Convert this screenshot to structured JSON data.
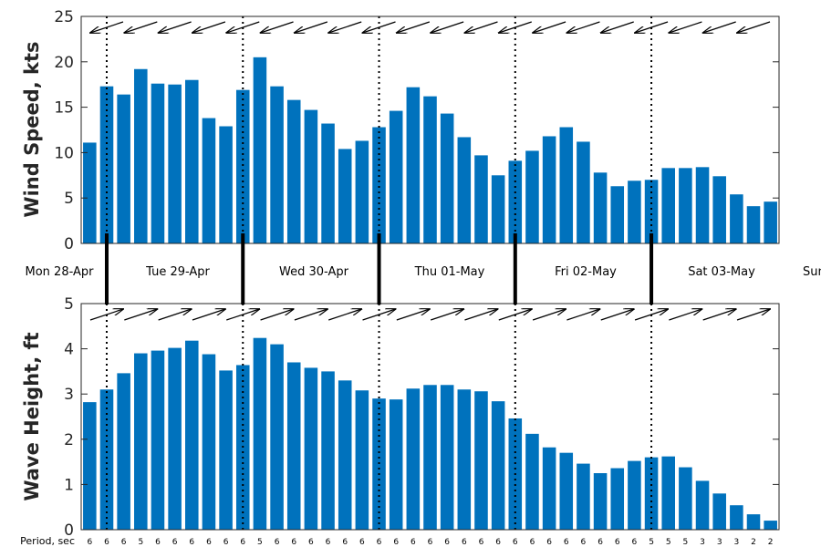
{
  "chart_data": [
    {
      "type": "bar",
      "ylabel": "Wind Speed, kts",
      "ylim": [
        0,
        25
      ],
      "yticks": [
        "0",
        "5",
        "10",
        "15",
        "20",
        "25"
      ],
      "bar_color": "#0072bd",
      "grid": false,
      "values": [
        11.1,
        17.3,
        16.4,
        19.2,
        17.6,
        17.5,
        18.0,
        13.8,
        12.9,
        16.9,
        20.5,
        17.3,
        15.8,
        14.7,
        13.2,
        10.4,
        11.3,
        12.8,
        14.6,
        17.2,
        16.2,
        14.3,
        11.7,
        9.7,
        7.5,
        9.1,
        10.2,
        11.8,
        12.8,
        11.2,
        7.8,
        6.3,
        6.9,
        7.0,
        8.3,
        8.3,
        8.4,
        7.4,
        5.4,
        4.1,
        4.6
      ],
      "direction_arrows": "wind direction arrows, pointing from the east toward the west along the top of the panel"
    },
    {
      "type": "bar",
      "ylabel": "Wave Height, ft",
      "ylim": [
        0,
        5
      ],
      "yticks": [
        "0",
        "1",
        "2",
        "3",
        "4",
        "5"
      ],
      "bar_color": "#0072bd",
      "grid": false,
      "values": [
        2.82,
        3.1,
        3.46,
        3.9,
        3.96,
        4.02,
        4.18,
        3.88,
        3.52,
        3.64,
        4.24,
        4.1,
        3.7,
        3.58,
        3.5,
        3.3,
        3.08,
        2.9,
        2.88,
        3.12,
        3.2,
        3.2,
        3.1,
        3.06,
        2.84,
        2.46,
        2.12,
        1.82,
        1.7,
        1.46,
        1.25,
        1.36,
        1.52,
        1.6,
        1.62,
        1.38,
        1.08,
        0.8,
        0.54,
        0.34,
        0.2
      ],
      "direction_arrows": "wave direction arrows, pointing toward the north-east along the top of the panel",
      "period_caption": "Period, sec",
      "periods": [
        "6",
        "6",
        "6",
        "5",
        "6",
        "6",
        "6",
        "6",
        "6",
        "6",
        "5",
        "6",
        "6",
        "6",
        "6",
        "6",
        "6",
        "6",
        "6",
        "6",
        "6",
        "6",
        "6",
        "6",
        "6",
        "6",
        "6",
        "6",
        "6",
        "6",
        "6",
        "6",
        "6",
        "5",
        "5",
        "5",
        "3",
        "3",
        "3",
        "2",
        "2"
      ]
    }
  ],
  "days": [
    "Mon 28-Apr",
    "Tue 29-Apr",
    "Wed 30-Apr",
    "Thu 01-May",
    "Fri 02-May",
    "Sat 03-May",
    "Sun"
  ],
  "colors": {
    "bar": "#0072bd",
    "separator": "#000000",
    "axis": "#262626"
  }
}
